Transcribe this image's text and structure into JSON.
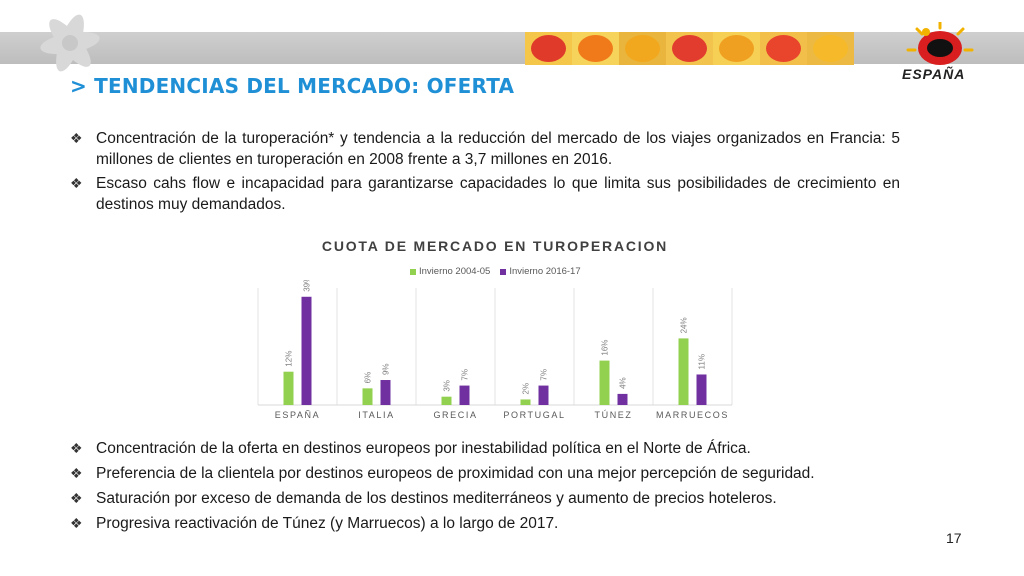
{
  "slide": {
    "title": "> TENDENCIAS DEL MERCADO: OFERTA",
    "page_number": "17",
    "logo_text": "ESPAÑA",
    "bullet_marker": "❖",
    "top_bullets": [
      "Concentración de la turoperación* y tendencia a la reducción del mercado de los viajes organizados en Francia: 5 millones de clientes en turoperación en 2008 frente a 3,7 millones en 2016.",
      "Escaso cahs flow e incapacidad para garantizarse capacidades lo que limita sus posibilidades de crecimiento en destinos muy demandados."
    ],
    "bottom_bullets": [
      "Concentración de la oferta en destinos europeos por inestabilidad política en el Norte de África.",
      "Preferencia de la clientela por destinos europeos de proximidad con una mejor percepción de  seguridad.",
      "Saturación por exceso de demanda de los destinos mediterráneos y aumento de precios hoteleros.",
      "Progresiva reactivación de Túnez (y Marruecos) a lo largo de 2017."
    ],
    "header_tile_colors": [
      "#e03a2a",
      "#f07a1a",
      "#f2a81e",
      "#e23c2f",
      "#f0a020",
      "#e8452c",
      "#f5b92a"
    ]
  },
  "chart_data": {
    "type": "bar",
    "title": "CUOTA DE MERCADO EN TUROPERACION",
    "categories": [
      "ESPAÑA",
      "ITALIA",
      "GRECIA",
      "PORTUGAL",
      "TÚNEZ",
      "MARRUECOS"
    ],
    "series": [
      {
        "name": "Invierno 2004-05",
        "color": "#92d050",
        "values": [
          12,
          6,
          3,
          2,
          16,
          24
        ],
        "labels": [
          "12%",
          "6%",
          "3%",
          "2%",
          "16%",
          "24%"
        ]
      },
      {
        "name": "Invierno 2016-17",
        "color": "#7030a0",
        "values": [
          39,
          9,
          7,
          7,
          4,
          11
        ],
        "labels": [
          "39%",
          "9%",
          "7%",
          "7%",
          "4%",
          "11%"
        ]
      }
    ],
    "ylim": [
      0,
      40
    ],
    "grid": false,
    "legend_position": "top"
  }
}
